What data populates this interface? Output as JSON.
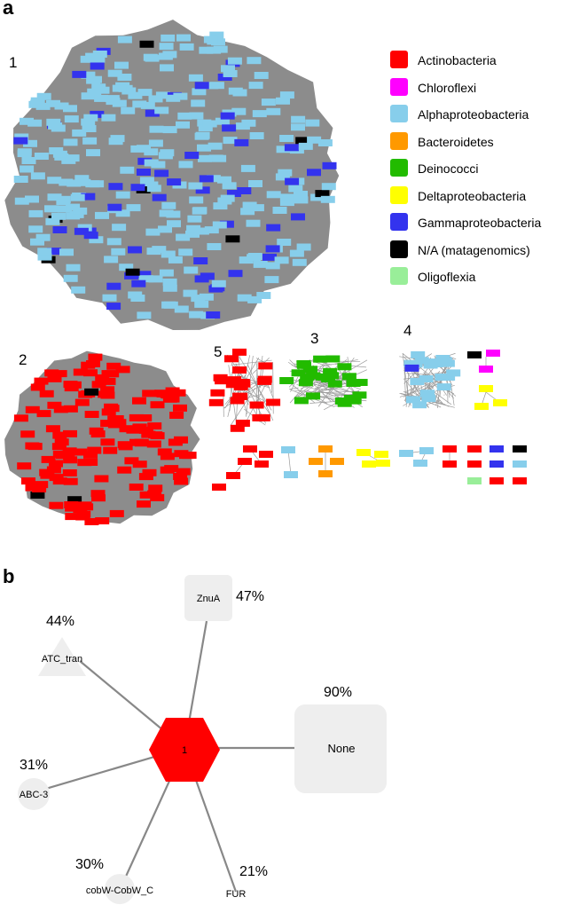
{
  "panel_a": {
    "label": "a",
    "cluster_numbers": [
      "1",
      "2",
      "3",
      "4",
      "5"
    ],
    "legend": [
      {
        "label": "Actinobacteria",
        "color": "#ff0000"
      },
      {
        "label": "Chloroflexi",
        "color": "#ff00ff"
      },
      {
        "label": "Alphaproteobacteria",
        "color": "#87ceeb"
      },
      {
        "label": "Bacteroidetes",
        "color": "#ff9900"
      },
      {
        "label": "Deinococci",
        "color": "#22bb00"
      },
      {
        "label": "Deltaproteobacteria",
        "color": "#ffff00"
      },
      {
        "label": "Gammaproteobacteria",
        "color": "#3333ee"
      },
      {
        "label": "N/A (matagenomics)",
        "color": "#000000"
      },
      {
        "label": "Oligoflexia",
        "color": "#99ee99"
      }
    ]
  },
  "panel_b": {
    "label": "b",
    "center": {
      "label": "1",
      "color": "#ff0000",
      "shape": "hexagon"
    },
    "nodes": [
      {
        "label": "ZnuA",
        "percent": "47%",
        "shape": "rounded-square"
      },
      {
        "label": "ATC_tran",
        "percent": "44%",
        "shape": "triangle"
      },
      {
        "label": "None",
        "percent": "90%",
        "shape": "rounded-square"
      },
      {
        "label": "ABC-3",
        "percent": "31%",
        "shape": "circle"
      },
      {
        "label": "cobW-CobW_C",
        "percent": "30%",
        "shape": "circle"
      },
      {
        "label": "FUR",
        "percent": "21%",
        "shape": "circle"
      }
    ]
  }
}
